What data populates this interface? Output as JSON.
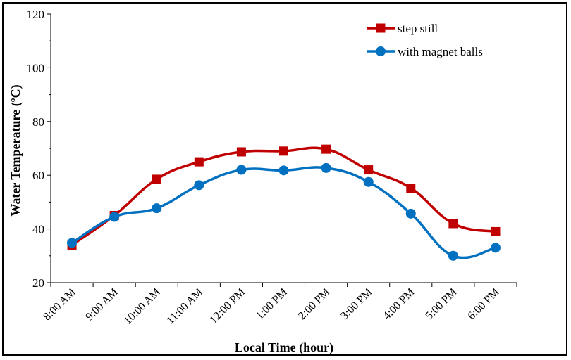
{
  "chart_data": {
    "type": "line",
    "categories": [
      "8:00 AM",
      "9:00 AM",
      "10:00 AM",
      "11:00 AM",
      "12:00 PM",
      "1:00 PM",
      "2:00 PM",
      "3:00 PM",
      "4:00 PM",
      "5:00 PM",
      "6:00 PM"
    ],
    "series": [
      {
        "name": "step still",
        "color": "#c00000",
        "marker": "square",
        "values": [
          34,
          45,
          58.5,
          65,
          68.7,
          69,
          69.7,
          62,
          55.2,
          42,
          39
        ]
      },
      {
        "name": "with magnet balls",
        "color": "#0070c0",
        "marker": "circle",
        "values": [
          34.8,
          44.5,
          47.7,
          56.3,
          62,
          61.8,
          62.7,
          57.5,
          45.7,
          30,
          33
        ]
      }
    ],
    "xlabel": "Local Time (hour)",
    "ylabel": "Water Temperature (ºC)",
    "ylim": [
      20,
      120
    ],
    "yticks": [
      20,
      40,
      60,
      80,
      100,
      120
    ],
    "legend": "top-right",
    "grid": false
  }
}
